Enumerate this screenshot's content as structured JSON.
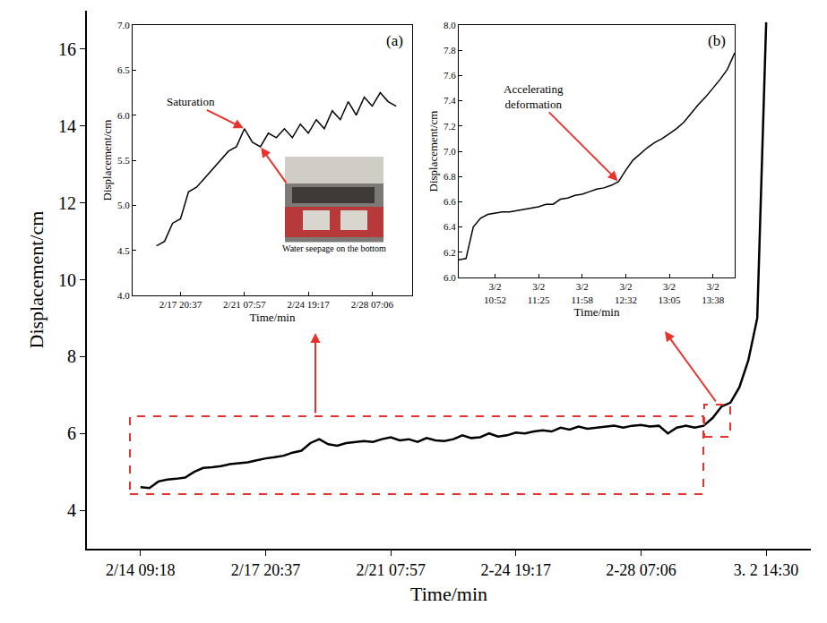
{
  "chart_data": [
    {
      "type": "line",
      "x_label": "Time/min",
      "y_label": "Displacement/cm",
      "color": "#000000",
      "grid": false,
      "categories": [
        null,
        null,
        null,
        null,
        null,
        null,
        "2/14 09:18",
        null,
        null,
        null,
        null,
        null,
        null,
        null,
        null,
        null,
        null,
        null,
        null,
        null,
        "2/17 20:37",
        null,
        null,
        null,
        null,
        null,
        null,
        null,
        null,
        null,
        null,
        null,
        null,
        null,
        "2/21 07:57",
        null,
        null,
        null,
        null,
        null,
        null,
        null,
        null,
        null,
        null,
        null,
        null,
        null,
        "2-24 19:17",
        null,
        null,
        null,
        null,
        null,
        null,
        null,
        null,
        null,
        null,
        null,
        null,
        null,
        "2-28 07:06",
        null,
        null,
        null,
        null,
        null,
        null,
        null,
        null,
        null,
        null,
        null,
        null,
        null,
        "3. 2 14:30",
        null,
        null,
        null,
        null,
        null
      ],
      "values": [
        null,
        null,
        null,
        null,
        null,
        null,
        4.6,
        4.58,
        4.75,
        4.8,
        4.82,
        4.85,
        5.0,
        5.1,
        5.12,
        5.15,
        5.2,
        5.22,
        5.25,
        5.3,
        5.35,
        5.38,
        5.42,
        5.5,
        5.55,
        5.75,
        5.85,
        5.72,
        5.68,
        5.75,
        5.78,
        5.8,
        5.78,
        5.85,
        5.9,
        5.82,
        5.85,
        5.78,
        5.88,
        5.82,
        5.8,
        5.85,
        5.95,
        5.88,
        5.9,
        6.0,
        5.92,
        5.95,
        6.02,
        6.0,
        6.05,
        6.08,
        6.05,
        6.15,
        6.1,
        6.18,
        6.12,
        6.15,
        6.18,
        6.2,
        6.15,
        6.2,
        6.22,
        6.18,
        6.2,
        6.0,
        6.15,
        6.2,
        6.15,
        6.2,
        6.4,
        6.7,
        6.8,
        7.2,
        7.9,
        9.0,
        16.7,
        null,
        null,
        null,
        null,
        null
      ],
      "ylim": [
        3,
        17
      ],
      "yticks": [
        4,
        6,
        8,
        10,
        12,
        14,
        16
      ]
    },
    {
      "type": "line",
      "title": "(a)",
      "x_label": "Time/min",
      "y_label": "Displacement/cm",
      "color": "#000000",
      "grid": false,
      "categories": [
        null,
        null,
        null,
        null,
        null,
        null,
        "2/17 20:37",
        null,
        null,
        null,
        null,
        null,
        null,
        null,
        "2/21 07:57",
        null,
        null,
        null,
        null,
        null,
        null,
        null,
        "2/24 19:17",
        null,
        null,
        null,
        null,
        null,
        null,
        null,
        "2/28 07:06",
        null,
        null,
        null,
        null,
        null
      ],
      "values": [
        null,
        null,
        null,
        4.55,
        4.6,
        4.8,
        4.85,
        5.15,
        5.2,
        5.3,
        5.4,
        5.5,
        5.6,
        5.65,
        5.85,
        5.7,
        5.65,
        5.8,
        5.75,
        5.85,
        5.75,
        5.9,
        5.8,
        5.95,
        5.85,
        6.05,
        5.95,
        6.15,
        6.0,
        6.2,
        6.1,
        6.25,
        6.15,
        6.1,
        null,
        null
      ],
      "ylim": [
        4,
        7
      ],
      "yticks": [
        {
          "value": 4,
          "label": "4.0"
        },
        {
          "value": 4.5,
          "label": "4.5"
        },
        {
          "value": 5,
          "label": "5.0"
        },
        {
          "value": 5.5,
          "label": "5.5"
        },
        {
          "value": 6,
          "label": "6.0"
        },
        {
          "value": 6.5,
          "label": "6.5"
        },
        {
          "value": 7,
          "label": "7.0"
        }
      ],
      "annotations": [
        {
          "text": "Saturation",
          "x": 14,
          "y": 5.85
        }
      ],
      "image_caption": "Water seepage on the bottom"
    },
    {
      "type": "line",
      "title": "(b)",
      "x_label": "Time/min",
      "y_label": "Displacement/cm",
      "color": "#000000",
      "grid": false,
      "categories": [
        null,
        null,
        null,
        null,
        null,
        "3/2 10:52",
        null,
        null,
        null,
        null,
        null,
        "3/2 11:25",
        null,
        null,
        null,
        null,
        null,
        "3/2 11:58",
        null,
        null,
        null,
        null,
        null,
        "3/2 12:32",
        null,
        null,
        null,
        null,
        null,
        "3/2 13:05",
        null,
        null,
        null,
        null,
        null,
        "3/2 13:38",
        null,
        null,
        null
      ],
      "values": [
        6.14,
        6.15,
        6.4,
        6.47,
        6.5,
        6.51,
        6.52,
        6.52,
        6.53,
        6.54,
        6.55,
        6.56,
        6.58,
        6.58,
        6.62,
        6.63,
        6.65,
        6.66,
        6.68,
        6.7,
        6.71,
        6.73,
        6.76,
        6.85,
        6.93,
        6.98,
        7.03,
        7.07,
        7.1,
        7.14,
        7.18,
        7.23,
        7.3,
        7.37,
        7.43,
        7.5,
        7.57,
        7.65,
        7.78
      ],
      "ylim": [
        6,
        8
      ],
      "yticks": [
        {
          "value": 6,
          "label": "6.0"
        },
        {
          "value": 6.2,
          "label": "6.2"
        },
        {
          "value": 6.4,
          "label": "6.4"
        },
        {
          "value": 6.6,
          "label": "6.6"
        },
        {
          "value": 6.8,
          "label": "6.8"
        },
        {
          "value": 7,
          "label": "7.0"
        },
        {
          "value": 7.2,
          "label": "7.2"
        },
        {
          "value": 7.4,
          "label": "7.4"
        },
        {
          "value": 7.6,
          "label": "7.6"
        },
        {
          "value": 7.8,
          "label": "7.8"
        },
        {
          "value": 8,
          "label": "8.0"
        }
      ],
      "annotations": [
        {
          "text": "Accelerating deformation",
          "x": 22,
          "y": 6.76
        }
      ]
    }
  ]
}
